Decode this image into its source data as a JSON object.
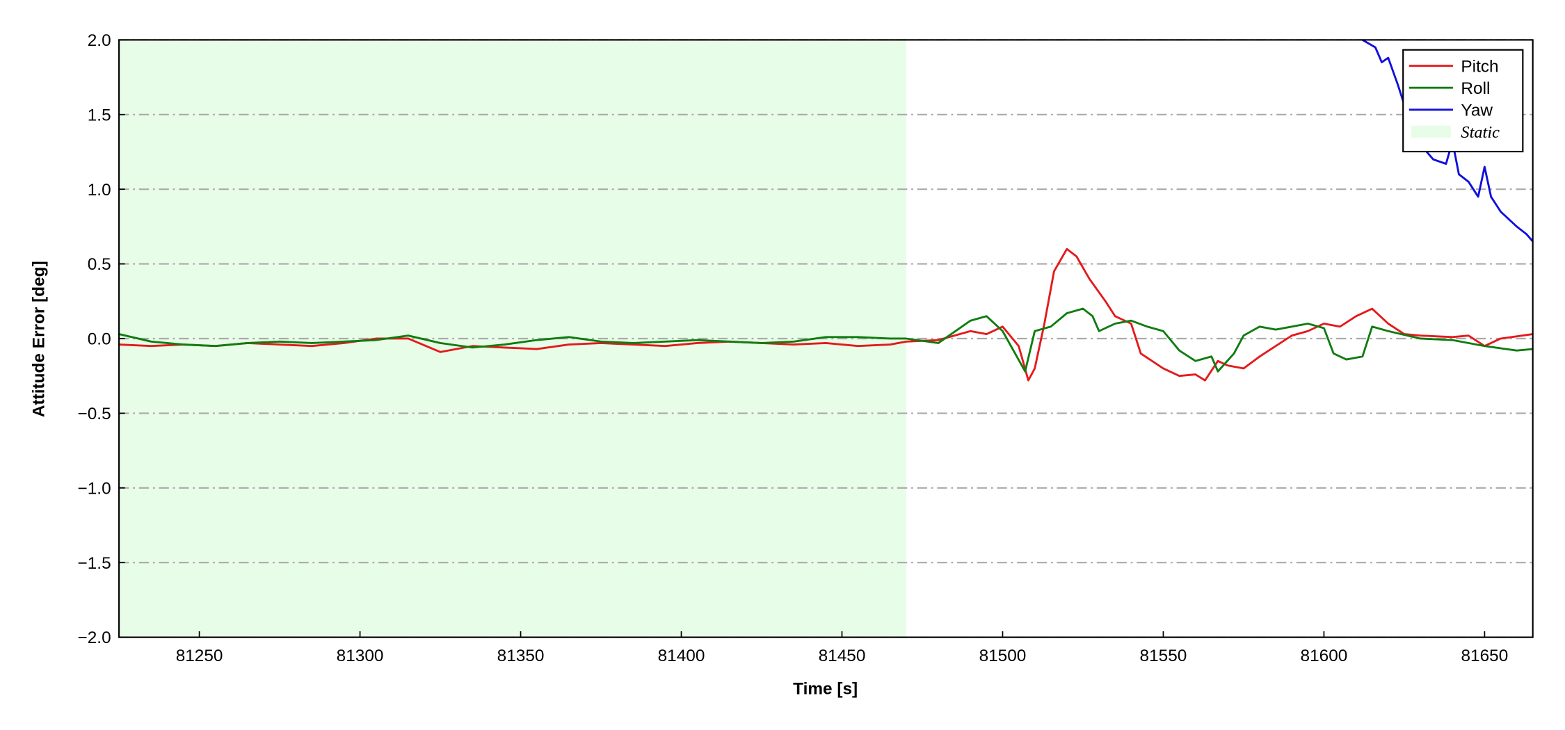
{
  "chart_data": {
    "type": "line",
    "x_label": "Time [s]",
    "y_label": "Attitude Error [deg]",
    "xlim": [
      81225,
      81665
    ],
    "ylim": [
      -2.0,
      2.0
    ],
    "xticks": [
      81250,
      81300,
      81350,
      81400,
      81450,
      81500,
      81550,
      81600,
      81650
    ],
    "yticks": [
      {
        "value": -2.0,
        "label": "−2.0"
      },
      {
        "value": -1.5,
        "label": "−1.5"
      },
      {
        "value": -1.0,
        "label": "−1.0"
      },
      {
        "value": -0.5,
        "label": "−0.5"
      },
      {
        "value": 0.0,
        "label": "0.0"
      },
      {
        "value": 0.5,
        "label": "0.5"
      },
      {
        "value": 1.0,
        "label": "1.0"
      },
      {
        "value": 1.5,
        "label": "1.5"
      },
      {
        "value": 2.0,
        "label": "2.0"
      }
    ],
    "grid": true,
    "legend": "upper right",
    "static_region": {
      "name": "Static",
      "xrange": [
        81225,
        81470
      ],
      "color": "#e8fde8"
    },
    "series": [
      {
        "name": "Pitch",
        "color": "#e41a1c",
        "x": [
          81225,
          81235,
          81245,
          81255,
          81265,
          81275,
          81285,
          81295,
          81305,
          81315,
          81325,
          81335,
          81345,
          81355,
          81365,
          81375,
          81385,
          81395,
          81405,
          81415,
          81425,
          81435,
          81445,
          81455,
          81465,
          81470,
          81480,
          81490,
          81495,
          81500,
          81505,
          81508,
          81510,
          81513,
          81516,
          81520,
          81523,
          81527,
          81532,
          81535,
          81540,
          81543,
          81550,
          81555,
          81560,
          81563,
          81567,
          81570,
          81575,
          81580,
          81585,
          81590,
          81595,
          81600,
          81605,
          81610,
          81615,
          81620,
          81625,
          81630,
          81640,
          81645,
          81650,
          81655,
          81665
        ],
        "values": [
          -0.04,
          -0.05,
          -0.04,
          -0.05,
          -0.03,
          -0.04,
          -0.05,
          -0.03,
          0.0,
          0.0,
          -0.09,
          -0.05,
          -0.06,
          -0.07,
          -0.04,
          -0.03,
          -0.04,
          -0.05,
          -0.03,
          -0.02,
          -0.03,
          -0.04,
          -0.03,
          -0.05,
          -0.04,
          -0.02,
          -0.01,
          0.05,
          0.03,
          0.08,
          -0.05,
          -0.28,
          -0.2,
          0.1,
          0.45,
          0.6,
          0.55,
          0.4,
          0.25,
          0.15,
          0.1,
          -0.1,
          -0.2,
          -0.25,
          -0.24,
          -0.28,
          -0.15,
          -0.18,
          -0.2,
          -0.12,
          -0.05,
          0.02,
          0.05,
          0.1,
          0.08,
          0.15,
          0.2,
          0.1,
          0.03,
          0.02,
          0.01,
          0.02,
          -0.05,
          0.0,
          0.03
        ]
      },
      {
        "name": "Roll",
        "color": "#107c10",
        "x": [
          81225,
          81235,
          81245,
          81255,
          81265,
          81275,
          81285,
          81295,
          81305,
          81315,
          81325,
          81335,
          81345,
          81355,
          81365,
          81375,
          81385,
          81395,
          81405,
          81415,
          81425,
          81435,
          81445,
          81455,
          81465,
          81470,
          81480,
          81490,
          81495,
          81500,
          81507,
          81510,
          81515,
          81520,
          81525,
          81528,
          81530,
          81535,
          81540,
          81545,
          81550,
          81555,
          81560,
          81565,
          81567,
          81572,
          81575,
          81580,
          81585,
          81590,
          81595,
          81600,
          81603,
          81607,
          81612,
          81615,
          81620,
          81630,
          81640,
          81650,
          81660,
          81665
        ],
        "values": [
          0.03,
          -0.02,
          -0.04,
          -0.05,
          -0.03,
          -0.02,
          -0.03,
          -0.02,
          -0.01,
          0.02,
          -0.03,
          -0.06,
          -0.04,
          -0.01,
          0.01,
          -0.02,
          -0.03,
          -0.02,
          -0.01,
          -0.02,
          -0.03,
          -0.02,
          0.01,
          0.01,
          0.0,
          0.0,
          -0.03,
          0.12,
          0.15,
          0.05,
          -0.22,
          0.05,
          0.08,
          0.17,
          0.2,
          0.15,
          0.05,
          0.1,
          0.12,
          0.08,
          0.05,
          -0.08,
          -0.15,
          -0.12,
          -0.22,
          -0.1,
          0.02,
          0.08,
          0.06,
          0.08,
          0.1,
          0.07,
          -0.1,
          -0.14,
          -0.12,
          0.08,
          0.05,
          0.0,
          -0.01,
          -0.05,
          -0.08,
          -0.07
        ]
      },
      {
        "name": "Yaw",
        "color": "#1010dd",
        "x": [
          81612,
          81616,
          81618,
          81620,
          81623,
          81626,
          81630,
          81634,
          81638,
          81640,
          81642,
          81645,
          81648,
          81650,
          81652,
          81655,
          81660,
          81663,
          81665
        ],
        "values": [
          2.0,
          1.95,
          1.85,
          1.88,
          1.7,
          1.5,
          1.3,
          1.2,
          1.17,
          1.32,
          1.1,
          1.05,
          0.95,
          1.15,
          0.95,
          0.85,
          0.75,
          0.7,
          0.65
        ]
      }
    ]
  }
}
